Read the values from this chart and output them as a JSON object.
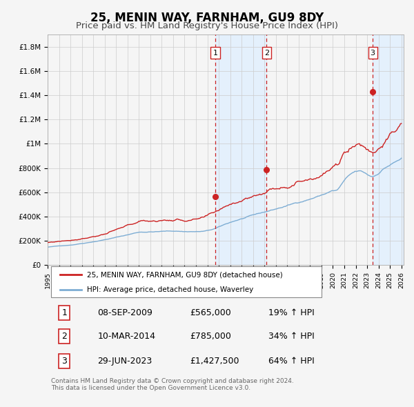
{
  "title": "25, MENIN WAY, FARNHAM, GU9 8DY",
  "subtitle": "Price paid vs. HM Land Registry's House Price Index (HPI)",
  "title_fontsize": 12,
  "subtitle_fontsize": 9.5,
  "ylabel_ticks": [
    "£0",
    "£200K",
    "£400K",
    "£600K",
    "£800K",
    "£1M",
    "£1.2M",
    "£1.4M",
    "£1.6M",
    "£1.8M"
  ],
  "ytick_values": [
    0,
    200000,
    400000,
    600000,
    800000,
    1000000,
    1200000,
    1400000,
    1600000,
    1800000
  ],
  "ylim": [
    0,
    1900000
  ],
  "xlim_start": 1995.0,
  "xlim_end": 2026.2,
  "hpi_color": "#7dadd4",
  "price_color": "#cc2222",
  "sale_marker_color": "#cc2222",
  "transaction_line_color": "#cc2222",
  "shade_color": "#ddeeff",
  "background_color": "#f5f5f5",
  "grid_color": "#cccccc",
  "sale_dates_decimal": [
    2009.69,
    2014.19,
    2023.49
  ],
  "sale_prices": [
    565000,
    785000,
    1427500
  ],
  "sale_labels": [
    "1",
    "2",
    "3"
  ],
  "table_rows": [
    [
      "1",
      "08-SEP-2009",
      "£565,000",
      "19% ↑ HPI"
    ],
    [
      "2",
      "10-MAR-2014",
      "£785,000",
      "34% ↑ HPI"
    ],
    [
      "3",
      "29-JUN-2023",
      "£1,427,500",
      "64% ↑ HPI"
    ]
  ],
  "legend_entries": [
    "25, MENIN WAY, FARNHAM, GU9 8DY (detached house)",
    "HPI: Average price, detached house, Waverley"
  ],
  "footer_text": "Contains HM Land Registry data © Crown copyright and database right 2024.\nThis data is licensed under the Open Government Licence v3.0."
}
